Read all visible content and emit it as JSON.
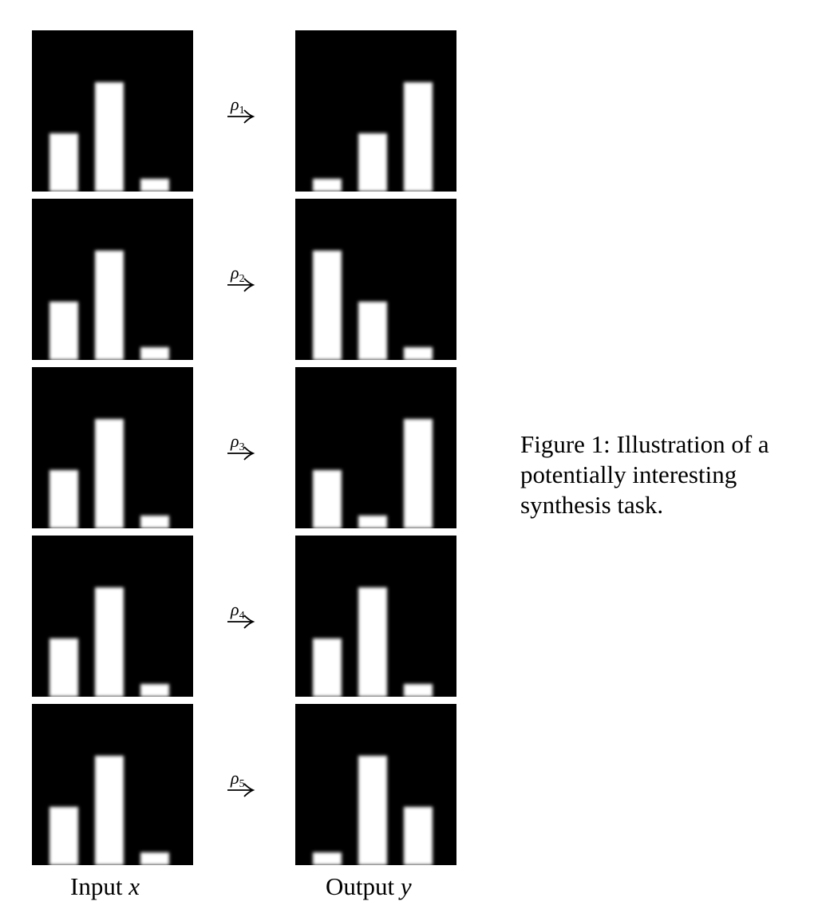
{
  "caption": {
    "prefix": "Figure 1:",
    "text": "Illustration of a potentially interesting synthesis task."
  },
  "labels": {
    "input_word": "Input",
    "input_var": "x",
    "output_word": "Output",
    "output_var": "y"
  },
  "rows": [
    {
      "rho_symbol": "ρ",
      "rho_index": "1",
      "input_bars": [
        0.36,
        0.68,
        0.08
      ],
      "output_bars": [
        0.08,
        0.36,
        0.68
      ]
    },
    {
      "rho_symbol": "ρ",
      "rho_index": "2",
      "input_bars": [
        0.36,
        0.68,
        0.08
      ],
      "output_bars": [
        0.68,
        0.36,
        0.08
      ]
    },
    {
      "rho_symbol": "ρ",
      "rho_index": "3",
      "input_bars": [
        0.36,
        0.68,
        0.08
      ],
      "output_bars": [
        0.36,
        0.08,
        0.68
      ]
    },
    {
      "rho_symbol": "ρ",
      "rho_index": "4",
      "input_bars": [
        0.36,
        0.68,
        0.08
      ],
      "output_bars": [
        0.36,
        0.68,
        0.08
      ]
    },
    {
      "rho_symbol": "ρ",
      "rho_index": "5",
      "input_bars": [
        0.36,
        0.68,
        0.08
      ],
      "output_bars": [
        0.08,
        0.68,
        0.36
      ]
    }
  ],
  "colors": {
    "panel_background": "#000000",
    "bar": "#ffffff"
  }
}
